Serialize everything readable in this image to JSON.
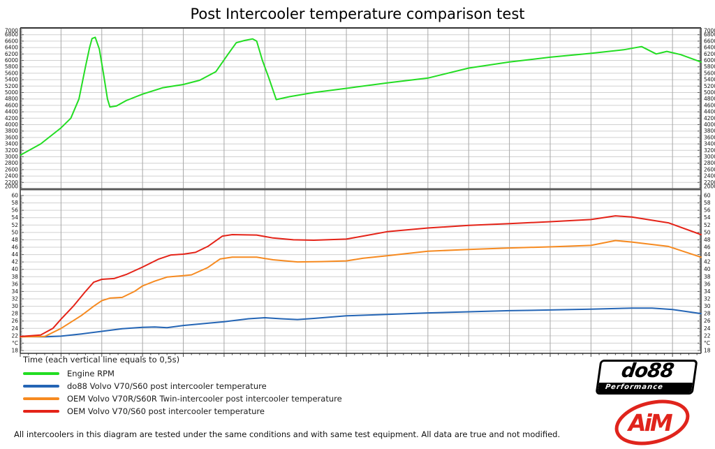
{
  "title": "Post Intercooler temperature comparison test",
  "time_note": "Time (each vertical line equals to 0,5s)",
  "footer": "All intercoolers in this diagram are tested under the same conditions and with same test equipment. All data are true and not modified.",
  "legend": [
    {
      "label": "Engine RPM",
      "color": "#22dd22"
    },
    {
      "label": "do88 Volvo V70/S60 post intercooler temperature",
      "color": "#2465b5"
    },
    {
      "label": "OEM Volvo V70R/S60R Twin-intercooler post intercooler temperature",
      "color": "#f68a20"
    },
    {
      "label": "OEM Volvo V70/S60 post intercooler temperature",
      "color": "#e42318"
    }
  ],
  "logos": {
    "do88_text": "do88",
    "do88_sub": "Performance",
    "aim_text": "AiM"
  },
  "chart_data": {
    "type": "line",
    "title": "Post Intercooler temperature comparison test",
    "xlabel": "Time (each vertical line equals to 0,5s)",
    "x_range": [
      0,
      8.35
    ],
    "grid_step_s": 0.5,
    "grid": true,
    "legend_position": "bottom-left",
    "panels": [
      {
        "name": "rpm",
        "ylabel": "Engine RPM",
        "ylim": [
          2000,
          7000
        ],
        "tick_step": 200,
        "minor_step": 40,
        "box": [
          40,
          271
        ],
        "scale": {
          "vtop": 7000,
          "ytop": 40.5,
          "vbot": 2000,
          "ybot": 270.5
        },
        "ticks": [
          [
            7000,
            "7000"
          ],
          [
            6800,
            "6800"
          ],
          [
            6600,
            "6600"
          ],
          [
            6400,
            "6400"
          ],
          [
            6200,
            "6200"
          ],
          [
            6000,
            "6000"
          ],
          [
            5800,
            "5800"
          ],
          [
            5600,
            "5600"
          ],
          [
            5400,
            "5400"
          ],
          [
            5200,
            "5200"
          ],
          [
            5000,
            "5000"
          ],
          [
            4800,
            "4800"
          ],
          [
            4600,
            "4600"
          ],
          [
            4400,
            "4400"
          ],
          [
            4200,
            "4200"
          ],
          [
            4000,
            "4000"
          ],
          [
            3800,
            "3800"
          ],
          [
            3600,
            "3600"
          ],
          [
            3400,
            "3400"
          ],
          [
            3200,
            "3200"
          ],
          [
            3000,
            "3000"
          ],
          [
            2800,
            "2800"
          ],
          [
            2600,
            "2600"
          ],
          [
            2400,
            "2400"
          ],
          [
            2200,
            "2200"
          ],
          [
            2000,
            "2000"
          ]
        ]
      },
      {
        "name": "temperature",
        "ylabel": "Temperature °C",
        "ylim": [
          18,
          60
        ],
        "tick_step": 2,
        "minor_step": 0.4,
        "box": [
          271,
          506
        ],
        "scale": {
          "vtop": 60,
          "ytop": 280,
          "vbot": 18,
          "ybot": 502
        },
        "ticks": [
          [
            60,
            "60"
          ],
          [
            58,
            "58"
          ],
          [
            56,
            "56"
          ],
          [
            54,
            "54"
          ],
          [
            52,
            "52"
          ],
          [
            50,
            "50"
          ],
          [
            48,
            "48"
          ],
          [
            46,
            "46"
          ],
          [
            44,
            "44"
          ],
          [
            42,
            "42"
          ],
          [
            40,
            "40"
          ],
          [
            38,
            "38"
          ],
          [
            36,
            "36"
          ],
          [
            34,
            "34"
          ],
          [
            32,
            "32"
          ],
          [
            30,
            "30"
          ],
          [
            28,
            "28"
          ],
          [
            26,
            "26"
          ],
          [
            24,
            "24"
          ],
          [
            22,
            "22"
          ],
          [
            20,
            "°C"
          ],
          [
            18,
            "18"
          ]
        ]
      }
    ],
    "series": [
      {
        "name": "Engine RPM",
        "panel": "rpm",
        "color": "#22dd22",
        "points": [
          [
            0,
            3050
          ],
          [
            0.25,
            3400
          ],
          [
            0.5,
            3900
          ],
          [
            0.62,
            4200
          ],
          [
            0.72,
            4800
          ],
          [
            0.8,
            5800
          ],
          [
            0.85,
            6400
          ],
          [
            0.88,
            6680
          ],
          [
            0.92,
            6720
          ],
          [
            0.97,
            6350
          ],
          [
            1.02,
            5600
          ],
          [
            1.07,
            4800
          ],
          [
            1.1,
            4550
          ],
          [
            1.18,
            4580
          ],
          [
            1.3,
            4750
          ],
          [
            1.5,
            4950
          ],
          [
            1.75,
            5150
          ],
          [
            2,
            5250
          ],
          [
            2.2,
            5380
          ],
          [
            2.4,
            5650
          ],
          [
            2.55,
            6200
          ],
          [
            2.65,
            6550
          ],
          [
            2.75,
            6620
          ],
          [
            2.85,
            6670
          ],
          [
            2.9,
            6600
          ],
          [
            2.97,
            6000
          ],
          [
            3.05,
            5450
          ],
          [
            3.14,
            4780
          ],
          [
            3.3,
            4870
          ],
          [
            3.6,
            5000
          ],
          [
            4,
            5130
          ],
          [
            4.5,
            5300
          ],
          [
            5,
            5450
          ],
          [
            5.5,
            5760
          ],
          [
            6,
            5950
          ],
          [
            6.5,
            6100
          ],
          [
            7,
            6220
          ],
          [
            7.4,
            6330
          ],
          [
            7.62,
            6430
          ],
          [
            7.8,
            6200
          ],
          [
            7.93,
            6280
          ],
          [
            8.1,
            6180
          ],
          [
            8.35,
            5950
          ]
        ]
      },
      {
        "name": "do88 Volvo V70/S60 post intercooler temperature",
        "panel": "temperature",
        "color": "#2465b5",
        "points": [
          [
            0,
            21.8
          ],
          [
            0.3,
            21.7
          ],
          [
            0.5,
            21.9
          ],
          [
            0.75,
            22.5
          ],
          [
            1,
            23.2
          ],
          [
            1.25,
            23.9
          ],
          [
            1.5,
            24.3
          ],
          [
            1.65,
            24.4
          ],
          [
            1.8,
            24.2
          ],
          [
            2,
            24.8
          ],
          [
            2.3,
            25.4
          ],
          [
            2.5,
            25.8
          ],
          [
            2.8,
            26.6
          ],
          [
            3,
            26.9
          ],
          [
            3.2,
            26.6
          ],
          [
            3.4,
            26.4
          ],
          [
            3.6,
            26.7
          ],
          [
            4,
            27.4
          ],
          [
            4.5,
            27.8
          ],
          [
            5,
            28.2
          ],
          [
            5.5,
            28.5
          ],
          [
            6,
            28.8
          ],
          [
            6.5,
            29
          ],
          [
            7,
            29.2
          ],
          [
            7.5,
            29.5
          ],
          [
            7.75,
            29.5
          ],
          [
            8,
            29.1
          ],
          [
            8.35,
            28
          ]
        ]
      },
      {
        "name": "OEM Volvo V70R/S60R Twin-intercooler post intercooler temperature",
        "panel": "temperature",
        "color": "#f68a20",
        "points": [
          [
            0,
            21.7
          ],
          [
            0.3,
            21.8
          ],
          [
            0.5,
            24
          ],
          [
            0.75,
            27.5
          ],
          [
            0.9,
            30
          ],
          [
            1,
            31.5
          ],
          [
            1.1,
            32.2
          ],
          [
            1.25,
            32.4
          ],
          [
            1.4,
            34
          ],
          [
            1.5,
            35.5
          ],
          [
            1.65,
            36.8
          ],
          [
            1.8,
            37.9
          ],
          [
            2,
            38.3
          ],
          [
            2.1,
            38.5
          ],
          [
            2.3,
            40.5
          ],
          [
            2.45,
            42.8
          ],
          [
            2.6,
            43.3
          ],
          [
            2.9,
            43.3
          ],
          [
            3.1,
            42.6
          ],
          [
            3.4,
            42
          ],
          [
            3.7,
            42.1
          ],
          [
            4,
            42.3
          ],
          [
            4.2,
            43
          ],
          [
            4.5,
            43.7
          ],
          [
            5,
            44.9
          ],
          [
            5.5,
            45.4
          ],
          [
            6,
            45.8
          ],
          [
            6.5,
            46.1
          ],
          [
            7,
            46.5
          ],
          [
            7.3,
            47.8
          ],
          [
            7.5,
            47.4
          ],
          [
            7.95,
            46.2
          ],
          [
            8.35,
            43.3
          ]
        ]
      },
      {
        "name": "OEM Volvo V70/S60 post intercooler temperature",
        "panel": "temperature",
        "color": "#e42318",
        "points": [
          [
            0,
            21.8
          ],
          [
            0.25,
            22.2
          ],
          [
            0.4,
            24
          ],
          [
            0.5,
            26.5
          ],
          [
            0.65,
            30
          ],
          [
            0.8,
            34
          ],
          [
            0.9,
            36.5
          ],
          [
            1,
            37.3
          ],
          [
            1.15,
            37.5
          ],
          [
            1.3,
            38.6
          ],
          [
            1.5,
            40.6
          ],
          [
            1.7,
            42.8
          ],
          [
            1.85,
            43.9
          ],
          [
            2,
            44.1
          ],
          [
            2.15,
            44.6
          ],
          [
            2.3,
            46.2
          ],
          [
            2.48,
            49
          ],
          [
            2.6,
            49.4
          ],
          [
            2.9,
            49.3
          ],
          [
            3.1,
            48.5
          ],
          [
            3.35,
            48
          ],
          [
            3.6,
            47.9
          ],
          [
            4,
            48.2
          ],
          [
            4.25,
            49.2
          ],
          [
            4.5,
            50.2
          ],
          [
            5,
            51.2
          ],
          [
            5.5,
            51.9
          ],
          [
            6,
            52.4
          ],
          [
            6.5,
            52.9
          ],
          [
            7,
            53.5
          ],
          [
            7.3,
            54.5
          ],
          [
            7.5,
            54.2
          ],
          [
            7.95,
            52.6
          ],
          [
            8.35,
            49.4
          ]
        ]
      }
    ]
  }
}
